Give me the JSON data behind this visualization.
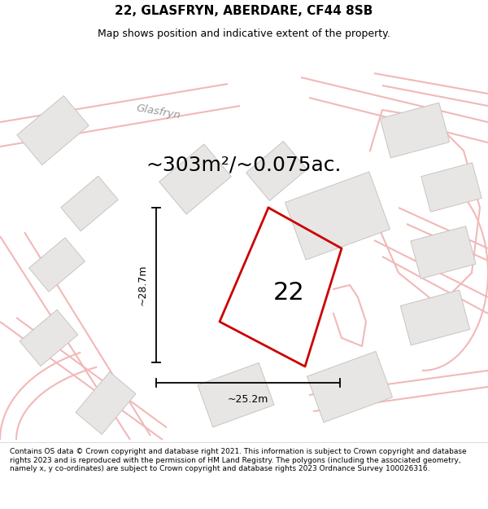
{
  "title_line1": "22, GLASFRYN, ABERDARE, CF44 8SB",
  "title_line2": "Map shows position and indicative extent of the property.",
  "footer_text": "Contains OS data © Crown copyright and database right 2021. This information is subject to Crown copyright and database rights 2023 and is reproduced with the permission of HM Land Registry. The polygons (including the associated geometry, namely x, y co-ordinates) are subject to Crown copyright and database rights 2023 Ordnance Survey 100026316.",
  "area_label": "~303m²/~0.075ac.",
  "property_number": "22",
  "dim_height": "~28.7m",
  "dim_width": "~25.2m",
  "map_bg": "#f7f6f4",
  "road_color": "#f2b8b8",
  "road_outline": "#e8a0a0",
  "building_color": "#e8e6e4",
  "building_outline": "#c8c4c0",
  "street_name": "Glasfryn",
  "title_fontsize": 11,
  "subtitle_fontsize": 9,
  "area_fontsize": 18,
  "footer_fontsize": 6.5
}
